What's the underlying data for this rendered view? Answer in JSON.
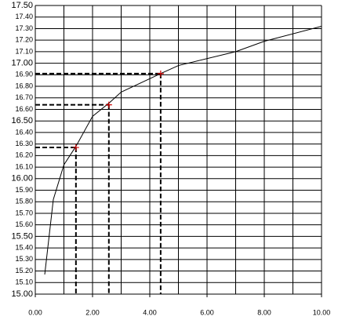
{
  "chart_data": {
    "type": "line",
    "color": "#000000",
    "x": [
      0.33,
      0.63,
      1.0,
      1.42,
      2.0,
      2.6,
      3.0,
      4.38,
      5.0,
      7.0,
      8.0,
      10.0
    ],
    "values": [
      15.17,
      15.82,
      16.12,
      16.28,
      16.54,
      16.66,
      16.75,
      16.91,
      16.98,
      17.1,
      17.19,
      17.32
    ],
    "markers": {
      "x": [
        1.42,
        2.57,
        4.38
      ],
      "y": [
        16.27,
        16.64,
        16.91
      ],
      "color": "#cc0000"
    },
    "xlim": [
      0,
      10
    ],
    "ylim": [
      15,
      17.5
    ],
    "xgrid": [
      1,
      2,
      3,
      4,
      5,
      6,
      7,
      8,
      9,
      10
    ],
    "xticks": [
      {
        "value": 0,
        "label": "0.00"
      },
      {
        "value": 2,
        "label": "2.00"
      },
      {
        "value": 4,
        "label": "4.00"
      },
      {
        "value": 6,
        "label": "6.00"
      },
      {
        "value": 8,
        "label": "8.00"
      },
      {
        "value": 10,
        "label": "10.00"
      }
    ],
    "yticks": [
      {
        "value": 15,
        "label": "15.00"
      },
      {
        "value": 15.1,
        "label": "15.10"
      },
      {
        "value": 15.2,
        "label": "15.20"
      },
      {
        "value": 15.3,
        "label": "15.30"
      },
      {
        "value": 15.4,
        "label": "15.40"
      },
      {
        "value": 15.5,
        "label": "15.50"
      },
      {
        "value": 15.6,
        "label": "15.60"
      },
      {
        "value": 15.7,
        "label": "15.70"
      },
      {
        "value": 15.8,
        "label": "15.80"
      },
      {
        "value": 15.9,
        "label": "15.90"
      },
      {
        "value": 16,
        "label": "16.00"
      },
      {
        "value": 16.1,
        "label": "16.10"
      },
      {
        "value": 16.2,
        "label": "16.20"
      },
      {
        "value": 16.3,
        "label": "16.30"
      },
      {
        "value": 16.4,
        "label": "16.40"
      },
      {
        "value": 16.5,
        "label": "16.50"
      },
      {
        "value": 16.6,
        "label": "16.60"
      },
      {
        "value": 16.7,
        "label": "16.70"
      },
      {
        "value": 16.8,
        "label": "16.80"
      },
      {
        "value": 16.9,
        "label": "16.90"
      },
      {
        "value": 17,
        "label": "17.00"
      },
      {
        "value": 17.1,
        "label": "17.10"
      },
      {
        "value": 17.2,
        "label": "17.20"
      },
      {
        "value": 17.3,
        "label": "17.30"
      },
      {
        "value": 17.4,
        "label": "17.40"
      },
      {
        "value": 17.5,
        "label": "17.50"
      }
    ],
    "grid": true
  }
}
